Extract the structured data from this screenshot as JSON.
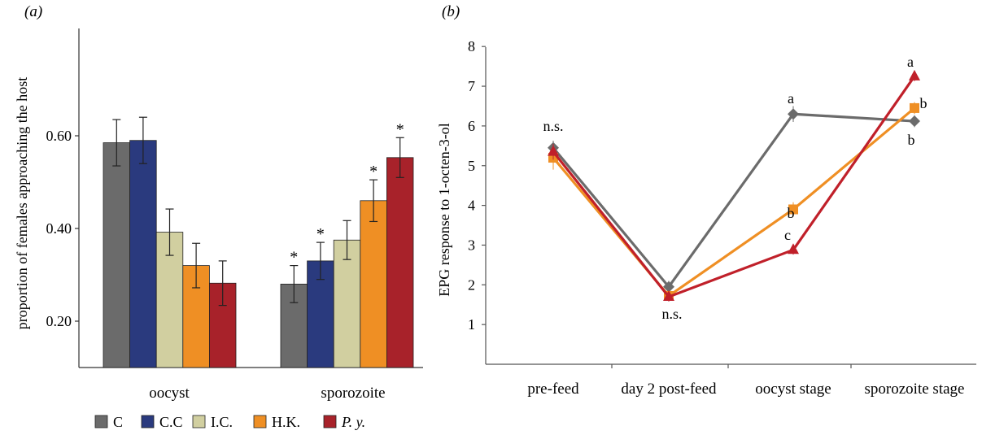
{
  "panel_a": {
    "label": "(a)",
    "ylabel": "proportion of females approaching the host",
    "legend": [
      {
        "name": "C",
        "color": "#6b6b6b"
      },
      {
        "name": "C.C",
        "color": "#2a3a7e"
      },
      {
        "name": "I.C.",
        "color": "#d1cfa0"
      },
      {
        "name": "H.K.",
        "color": "#ef8f24"
      },
      {
        "name": "P. y.",
        "color": "#a8222a"
      }
    ]
  },
  "panel_b": {
    "label": "(b)",
    "ylabel": "EPG response to 1-octen-3-ol"
  },
  "chart_data": [
    {
      "type": "bar",
      "categories": [
        "oocyst",
        "sporozoite"
      ],
      "ylabel": "proportion of females approaching the host",
      "ylim": [
        0.1,
        0.73
      ],
      "yticks": [
        0.2,
        0.4,
        0.6
      ],
      "ytick_labels": [
        "0.20",
        "0.40",
        "0.60"
      ],
      "series": [
        {
          "name": "C",
          "color": "#6b6b6b",
          "values": [
            0.585,
            0.28
          ],
          "errors": [
            0.05,
            0.04
          ],
          "marks": [
            "",
            "*"
          ]
        },
        {
          "name": "C.C",
          "color": "#2a3a7e",
          "values": [
            0.59,
            0.33
          ],
          "errors": [
            0.05,
            0.04
          ],
          "marks": [
            "",
            "*"
          ]
        },
        {
          "name": "I.C.",
          "color": "#d1cfa0",
          "values": [
            0.392,
            0.375
          ],
          "errors": [
            0.05,
            0.042
          ],
          "marks": [
            "",
            ""
          ]
        },
        {
          "name": "H.K.",
          "color": "#ef8f24",
          "values": [
            0.32,
            0.46
          ],
          "errors": [
            0.048,
            0.045
          ],
          "marks": [
            "",
            "*"
          ]
        },
        {
          "name": "P. y.",
          "color": "#a8222a",
          "values": [
            0.282,
            0.553
          ],
          "errors": [
            0.048,
            0.043
          ],
          "marks": [
            "",
            "*"
          ]
        }
      ]
    },
    {
      "type": "line",
      "categories": [
        "pre-feed",
        "day 2 post-feed",
        "oocyst stage",
        "sporozoite stage"
      ],
      "ylabel": "EPG response to 1-octen-3-ol",
      "ylim": [
        0,
        8
      ],
      "yticks": [
        1,
        2,
        3,
        4,
        5,
        6,
        7,
        8
      ],
      "series": [
        {
          "name": "C",
          "color": "#6b6b6b",
          "marker": "diamond",
          "values": [
            5.45,
            1.95,
            6.3,
            6.12
          ]
        },
        {
          "name": "H.K.",
          "color": "#ef8f24",
          "marker": "square",
          "values": [
            5.2,
            1.72,
            3.9,
            6.45
          ]
        },
        {
          "name": "P. y.",
          "color": "#c0202a",
          "marker": "triangle",
          "values": [
            5.35,
            1.7,
            2.88,
            7.25
          ]
        }
      ],
      "annotations": [
        "n.s.",
        "n.s.",
        "a",
        "b",
        "c",
        "a",
        "b",
        "b"
      ]
    }
  ]
}
